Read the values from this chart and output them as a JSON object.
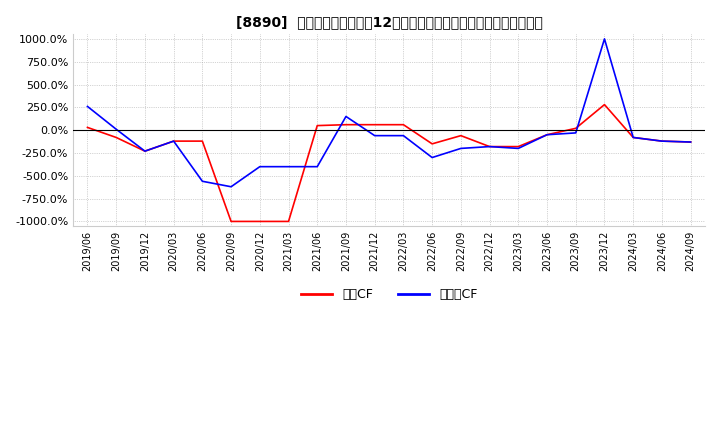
{
  "title": "[8890]  キャッシュフローの12か月移動合計の対前年同期増減率の推移",
  "legend_labels": [
    "営業CF",
    "フリーCF"
  ],
  "ylim": [
    -1050,
    1050
  ],
  "yticks": [
    -1000,
    -750,
    -500,
    -250,
    0,
    250,
    500,
    750,
    1000
  ],
  "ytick_labels": [
    "-1000.0%",
    "-750.0%",
    "-500.0%",
    "-250.0%",
    "0.0%",
    "250.0%",
    "500.0%",
    "750.0%",
    "1000.0%"
  ],
  "dates": [
    "2019/06",
    "2019/09",
    "2019/12",
    "2020/03",
    "2020/06",
    "2020/09",
    "2020/12",
    "2021/03",
    "2021/06",
    "2021/09",
    "2021/12",
    "2022/03",
    "2022/06",
    "2022/09",
    "2022/12",
    "2023/03",
    "2023/06",
    "2023/09",
    "2023/12",
    "2024/03",
    "2024/06",
    "2024/09"
  ],
  "operating_cf": [
    30,
    -80,
    -230,
    -120,
    -120,
    -1000,
    -1000,
    -1000,
    50,
    60,
    60,
    60,
    -150,
    -60,
    -180,
    -180,
    -50,
    20,
    280,
    -80,
    -120,
    -130
  ],
  "free_cf": [
    260,
    10,
    -230,
    -120,
    -560,
    -620,
    -400,
    -400,
    -400,
    150,
    -60,
    -60,
    -300,
    -200,
    -180,
    -200,
    -50,
    -30,
    1000,
    -80,
    -120,
    -130
  ],
  "operating_color": "#ff0000",
  "free_color": "#0000ff",
  "background_color": "#ffffff",
  "grid_color": "#aaaaaa"
}
